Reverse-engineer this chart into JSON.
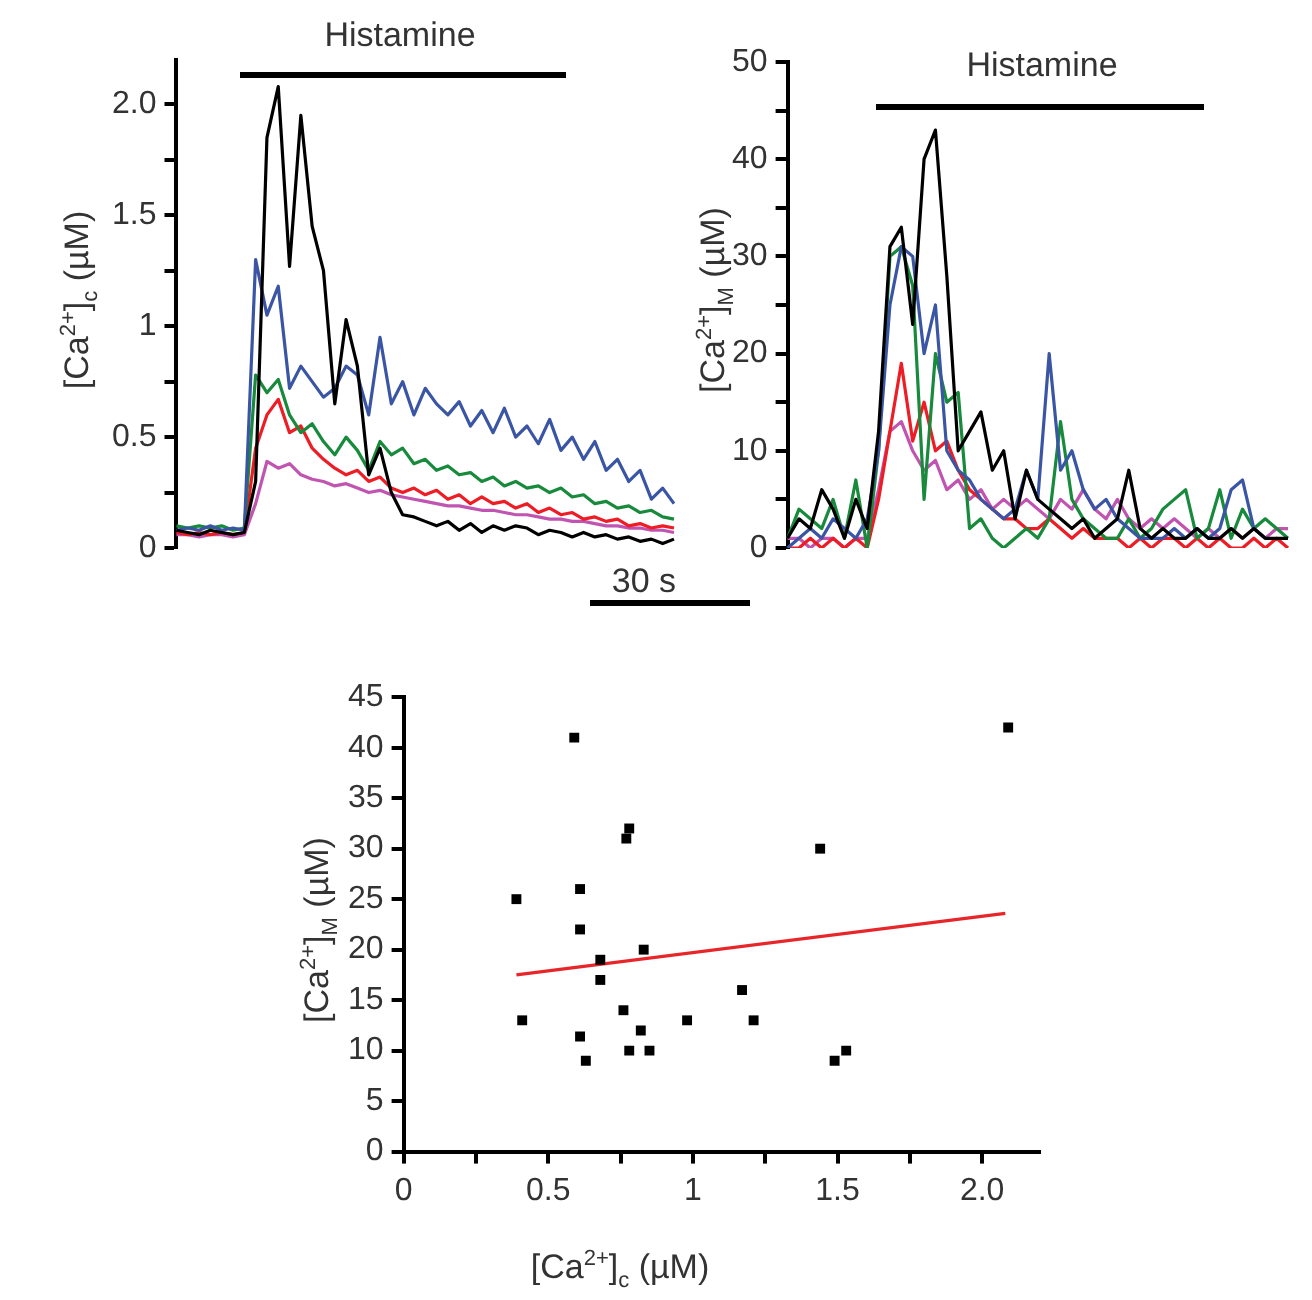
{
  "chart_data": [
    {
      "type": "line",
      "ylabel": "[Ca$^{2+}$]$_{c}$ (µM)",
      "annotations": [
        "Histamine",
        "30 s"
      ],
      "categories": [
        null,
        null,
        null,
        null,
        null,
        null,
        null,
        null,
        null,
        null,
        null,
        null,
        null,
        null,
        null,
        null,
        null,
        null,
        null,
        null,
        null,
        null,
        null,
        null,
        null,
        null,
        null,
        null,
        null,
        null,
        null,
        null,
        null,
        null,
        null,
        null,
        null,
        null,
        null,
        null,
        null,
        null,
        null,
        null,
        null
      ],
      "series": [
        {
          "color": "#000000",
          "values": [
            0.08,
            0.07,
            0.06,
            0.08,
            0.07,
            0.06,
            0.07,
            0.3,
            1.85,
            2.08,
            1.27,
            1.95,
            1.45,
            1.25,
            0.65,
            1.03,
            0.82,
            0.33,
            0.45,
            0.25,
            0.15,
            0.14,
            0.12,
            0.1,
            0.12,
            0.08,
            0.11,
            0.07,
            0.1,
            0.08,
            0.1,
            0.09,
            0.06,
            0.08,
            0.07,
            0.05,
            0.07,
            0.05,
            0.06,
            0.04,
            0.05,
            0.03,
            0.04,
            0.02,
            0.04
          ]
        },
        {
          "color": "#3a55a4",
          "values": [
            0.08,
            0.09,
            0.08,
            0.1,
            0.08,
            0.09,
            0.08,
            1.3,
            1.05,
            1.18,
            0.72,
            0.82,
            0.75,
            0.68,
            0.72,
            0.82,
            0.78,
            0.6,
            0.95,
            0.65,
            0.75,
            0.6,
            0.72,
            0.65,
            0.6,
            0.66,
            0.55,
            0.62,
            0.52,
            0.63,
            0.5,
            0.55,
            0.47,
            0.58,
            0.44,
            0.5,
            0.4,
            0.48,
            0.35,
            0.4,
            0.3,
            0.35,
            0.22,
            0.27,
            0.2
          ]
        },
        {
          "color": "#178a3c",
          "values": [
            0.1,
            0.09,
            0.1,
            0.09,
            0.1,
            0.08,
            0.09,
            0.78,
            0.7,
            0.76,
            0.6,
            0.52,
            0.56,
            0.48,
            0.42,
            0.5,
            0.44,
            0.35,
            0.48,
            0.42,
            0.45,
            0.38,
            0.4,
            0.35,
            0.37,
            0.33,
            0.34,
            0.3,
            0.32,
            0.28,
            0.3,
            0.27,
            0.28,
            0.25,
            0.27,
            0.23,
            0.24,
            0.2,
            0.21,
            0.18,
            0.19,
            0.16,
            0.17,
            0.14,
            0.13
          ]
        },
        {
          "color": "#ee1c24",
          "values": [
            0.07,
            0.06,
            0.07,
            0.06,
            0.07,
            0.06,
            0.07,
            0.45,
            0.6,
            0.67,
            0.52,
            0.55,
            0.45,
            0.4,
            0.36,
            0.33,
            0.35,
            0.3,
            0.32,
            0.27,
            0.25,
            0.27,
            0.24,
            0.26,
            0.22,
            0.24,
            0.2,
            0.23,
            0.2,
            0.21,
            0.18,
            0.2,
            0.16,
            0.18,
            0.15,
            0.16,
            0.13,
            0.14,
            0.12,
            0.13,
            0.1,
            0.11,
            0.09,
            0.1,
            0.09
          ]
        },
        {
          "color": "#c054b0",
          "values": [
            0.06,
            0.06,
            0.05,
            0.06,
            0.06,
            0.05,
            0.06,
            0.2,
            0.39,
            0.36,
            0.38,
            0.33,
            0.31,
            0.3,
            0.28,
            0.29,
            0.27,
            0.25,
            0.26,
            0.24,
            0.23,
            0.22,
            0.21,
            0.2,
            0.19,
            0.19,
            0.18,
            0.17,
            0.17,
            0.16,
            0.15,
            0.15,
            0.14,
            0.13,
            0.13,
            0.12,
            0.12,
            0.11,
            0.1,
            0.1,
            0.09,
            0.09,
            0.08,
            0.08,
            0.07
          ]
        }
      ],
      "ylim": [
        0,
        2.2
      ],
      "yticks": [
        0,
        {
          "value": 0.25,
          "label": null
        },
        0.5,
        {
          "value": 0.75,
          "label": null
        },
        1,
        {
          "value": 1.25,
          "label": null
        },
        1.5,
        {
          "value": 1.75,
          "label": null
        },
        {
          "value": 2,
          "label": "2.0"
        }
      ],
      "grid": false,
      "marker": "none",
      "line_style": "solid"
    },
    {
      "type": "line",
      "ylabel": "[Ca$^{2+}$]$_{M}$ (µM)",
      "annotations": [
        "Histamine"
      ],
      "categories": [
        null,
        null,
        null,
        null,
        null,
        null,
        null,
        null,
        null,
        null,
        null,
        null,
        null,
        null,
        null,
        null,
        null,
        null,
        null,
        null,
        null,
        null,
        null,
        null,
        null,
        null,
        null,
        null,
        null,
        null,
        null,
        null,
        null,
        null,
        null,
        null,
        null,
        null,
        null,
        null,
        null,
        null,
        null,
        null,
        null
      ],
      "series": [
        {
          "color": "#000000",
          "values": [
            1,
            3,
            2,
            6,
            4,
            1,
            5,
            2,
            12,
            31,
            33,
            23,
            40,
            43,
            28,
            10,
            12,
            14,
            8,
            10,
            3,
            8,
            5,
            4,
            3,
            2,
            3,
            1,
            2,
            3,
            8,
            2,
            1,
            2,
            1,
            1,
            2,
            1,
            1,
            2,
            1,
            2,
            1,
            1,
            1
          ]
        },
        {
          "color": "#3a55a4",
          "values": [
            0,
            1,
            2,
            1,
            3,
            2,
            1,
            3,
            10,
            25,
            31,
            30,
            20,
            25,
            10,
            8,
            7,
            5,
            4,
            3,
            4,
            8,
            5,
            20,
            8,
            10,
            6,
            4,
            5,
            3,
            2,
            1,
            1,
            1,
            2,
            1,
            2,
            1,
            2,
            6,
            7,
            2,
            1,
            null,
            null
          ]
        },
        {
          "color": "#178a3c",
          "values": [
            1,
            4,
            3,
            2,
            5,
            1,
            7,
            0,
            10,
            30,
            31,
            27,
            5,
            20,
            15,
            16,
            2,
            3,
            1,
            0,
            1,
            2,
            1,
            3,
            13,
            5,
            3,
            2,
            1,
            1,
            3,
            1,
            2,
            4,
            5,
            6,
            1,
            2,
            6,
            1,
            4,
            2,
            3,
            2,
            1
          ]
        },
        {
          "color": "#ee1c24",
          "values": [
            0,
            0,
            1,
            0,
            1,
            0,
            1,
            0,
            5,
            12,
            19,
            11,
            15,
            10,
            11,
            8,
            6,
            5,
            4,
            3,
            3,
            2,
            2,
            3,
            2,
            1,
            2,
            1,
            1,
            1,
            0,
            1,
            0,
            1,
            1,
            0,
            1,
            0,
            1,
            0,
            0,
            1,
            0,
            1,
            0
          ]
        },
        {
          "color": "#c054b0",
          "values": [
            1,
            1,
            0,
            1,
            1,
            0,
            1,
            1,
            6,
            12,
            13,
            10,
            8,
            9,
            6,
            7,
            5,
            6,
            4,
            5,
            4,
            5,
            4,
            3,
            5,
            4,
            6,
            4,
            3,
            5,
            3,
            2,
            3,
            2,
            3,
            2,
            1,
            2,
            1,
            2,
            1,
            2,
            1,
            2,
            2
          ]
        }
      ],
      "ylim": [
        0,
        50
      ],
      "yticks": [
        0,
        {
          "value": 5,
          "label": null
        },
        10,
        {
          "value": 15,
          "label": null
        },
        20,
        {
          "value": 25,
          "label": null
        },
        30,
        {
          "value": 35,
          "label": null
        },
        40,
        {
          "value": 45,
          "label": null
        },
        50
      ],
      "grid": false,
      "marker": "none",
      "line_style": "solid"
    },
    {
      "type": "scatter",
      "xlabel": "[Ca$^{2+}$]$_{c}$ (µM)",
      "ylabel": "[Ca$^{2+}$]$_{M}$ (µM)",
      "series": [
        {
          "type": "scatter",
          "color": "#000000",
          "marker": "square",
          "x": [
            0.39,
            0.41,
            0.59,
            0.61,
            0.61,
            0.61,
            0.63,
            0.68,
            0.68,
            0.76,
            0.77,
            0.78,
            0.78,
            0.82,
            0.83,
            0.85,
            0.98,
            1.17,
            1.21,
            1.44,
            1.49,
            1.53,
            2.09
          ],
          "values": [
            25,
            13,
            41,
            26,
            22,
            11.4,
            9,
            19,
            17,
            14,
            31,
            32,
            10,
            12,
            20,
            10,
            13,
            16,
            13,
            30,
            9,
            10,
            42
          ]
        },
        {
          "type": "line",
          "color": "#e8262a",
          "marker": "none",
          "line_style": "solid",
          "x": [
            0.39,
            2.08
          ],
          "values": [
            17.5,
            23.6
          ]
        }
      ],
      "xlim": [
        0,
        2.2
      ],
      "xticks": [
        0,
        {
          "value": 0.25,
          "label": null
        },
        0.5,
        {
          "value": 0.75,
          "label": null
        },
        1,
        {
          "value": 1.25,
          "label": null
        },
        1.5,
        {
          "value": 1.75,
          "label": null
        },
        {
          "value": 2,
          "label": "2.0"
        }
      ],
      "ylim": [
        0,
        45
      ],
      "yticks": [
        0,
        5,
        10,
        15,
        20,
        25,
        30,
        35,
        40,
        45
      ],
      "grid": false
    }
  ]
}
